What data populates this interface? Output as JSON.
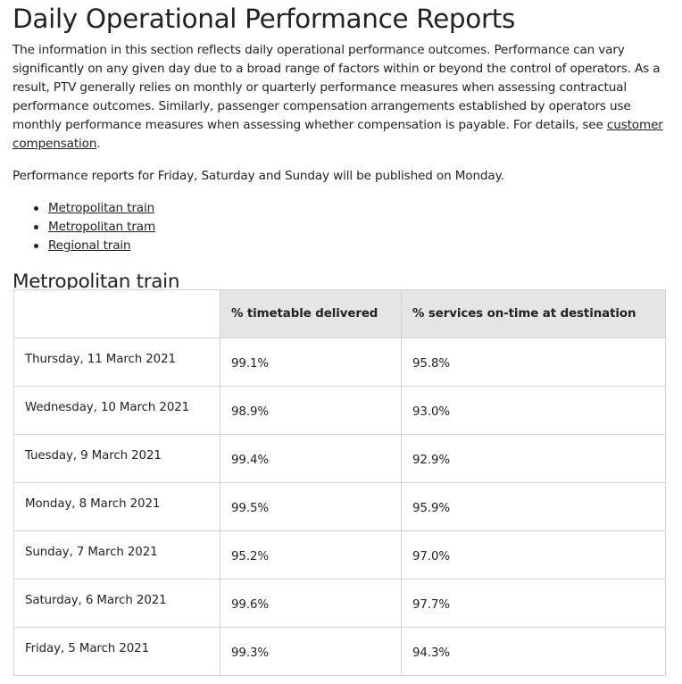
{
  "page": {
    "title": "Daily Operational Performance Reports",
    "intro_text": "The information in this section reflects daily operational performance outcomes. Performance can vary significantly on any given day due to a broad range of factors within or beyond the control of operators. As a result, PTV generally relies on monthly or quarterly performance measures when assessing contractual performance outcomes. Similarly, passenger compensation arrangements established by operators use monthly performance measures when assessing whether compensation is payable. For details, see ",
    "intro_link": "customer compensation",
    "intro_end": ".",
    "notice": "Performance reports for Friday, Saturday and Sunday will be published on Monday."
  },
  "links": [
    "Metropolitan train",
    "Metropolitan tram",
    "Regional train"
  ],
  "section": {
    "heading": "Metropolitan train",
    "table": {
      "headers": [
        "",
        "% timetable delivered",
        "% services on-time at destination"
      ],
      "rows": [
        [
          "Thursday, 11 March 2021",
          "99.1%",
          "95.8%"
        ],
        [
          "Wednesday, 10 March 2021",
          "98.9%",
          "93.0%"
        ],
        [
          "Tuesday, 9 March 2021",
          "99.4%",
          "92.9%"
        ],
        [
          "Monday, 8 March 2021",
          "99.5%",
          "95.9%"
        ],
        [
          "Sunday, 7 March 2021",
          "95.2%",
          "97.0%"
        ],
        [
          "Saturday, 6 March 2021",
          "99.6%",
          "97.7%"
        ],
        [
          "Friday, 5 March 2021",
          "99.3%",
          "94.3%"
        ]
      ]
    }
  }
}
